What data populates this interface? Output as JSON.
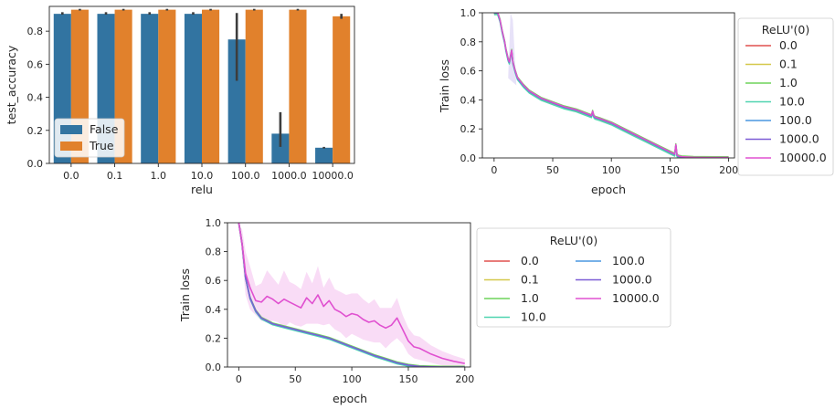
{
  "chart_data": [
    {
      "type": "bar",
      "xlabel": "relu",
      "ylabel": "test_accuracy",
      "ylim": [
        0,
        0.95
      ],
      "yticks": [
        "0.0",
        "0.2",
        "0.4",
        "0.6",
        "0.8"
      ],
      "categories": [
        "0.0",
        "0.1",
        "1.0",
        "10.0",
        "100.0",
        "1000.0",
        "10000.0"
      ],
      "legend_position": "lower-left",
      "series": [
        {
          "name": "False",
          "color": "#3274a1",
          "values": [
            0.905,
            0.905,
            0.905,
            0.905,
            0.75,
            0.18,
            0.095
          ],
          "ci_low": [
            0.9,
            0.9,
            0.9,
            0.9,
            0.5,
            0.1,
            0.09
          ],
          "ci_high": [
            0.915,
            0.915,
            0.915,
            0.915,
            0.91,
            0.31,
            0.1
          ]
        },
        {
          "name": "True",
          "color": "#e1812c",
          "values": [
            0.93,
            0.93,
            0.93,
            0.93,
            0.93,
            0.93,
            0.89
          ],
          "ci_low": [
            0.925,
            0.925,
            0.925,
            0.925,
            0.925,
            0.925,
            0.875
          ],
          "ci_high": [
            0.935,
            0.935,
            0.935,
            0.935,
            0.935,
            0.935,
            0.905
          ]
        }
      ]
    },
    {
      "type": "line",
      "xlabel": "epoch",
      "ylabel": "Train loss",
      "xlim": [
        -10,
        205
      ],
      "ylim": [
        0,
        1.0
      ],
      "xticks": [
        "0",
        "50",
        "100",
        "150",
        "200"
      ],
      "yticks": [
        "0.0",
        "0.2",
        "0.4",
        "0.6",
        "0.8",
        "1.0"
      ],
      "legend_title": "ReLU'(0)",
      "legend_position": "outside-right",
      "series": [
        {
          "name": "0.0",
          "color": "#e0504e"
        },
        {
          "name": "0.1",
          "color": "#d4c84a"
        },
        {
          "name": "1.0",
          "color": "#6ed35a"
        },
        {
          "name": "10.0",
          "color": "#50d4b0"
        },
        {
          "name": "100.0",
          "color": "#4a97e0"
        },
        {
          "name": "1000.0",
          "color": "#7c5cd6"
        },
        {
          "name": "10000.0",
          "color": "#e050d0"
        }
      ],
      "curve_x": [
        0,
        3,
        5,
        7,
        9,
        10,
        12,
        13,
        14,
        15,
        16,
        18,
        20,
        25,
        30,
        40,
        50,
        60,
        70,
        80,
        83,
        84,
        85,
        86,
        90,
        100,
        110,
        120,
        130,
        140,
        150,
        154,
        155,
        156,
        157,
        160,
        170,
        180,
        190,
        200
      ],
      "curve_y": [
        1.0,
        1.0,
        0.95,
        0.87,
        0.8,
        0.75,
        0.68,
        0.66,
        0.7,
        0.74,
        0.66,
        0.6,
        0.55,
        0.5,
        0.46,
        0.41,
        0.38,
        0.35,
        0.33,
        0.3,
        0.29,
        0.32,
        0.29,
        0.28,
        0.27,
        0.24,
        0.2,
        0.16,
        0.12,
        0.08,
        0.04,
        0.025,
        0.09,
        0.02,
        0.012,
        0.006,
        0.002,
        0.001,
        0.0005,
        0.0005
      ]
    },
    {
      "type": "line",
      "xlabel": "epoch",
      "ylabel": "Train loss",
      "xlim": [
        -10,
        205
      ],
      "ylim": [
        0,
        1.0
      ],
      "xticks": [
        "0",
        "50",
        "100",
        "150",
        "200"
      ],
      "yticks": [
        "0.0",
        "0.2",
        "0.4",
        "0.6",
        "0.8",
        "1.0"
      ],
      "legend_title": "ReLU'(0)",
      "legend_position": "outside-right",
      "series": [
        {
          "name": "0.0",
          "color": "#e0504e"
        },
        {
          "name": "0.1",
          "color": "#d4c84a"
        },
        {
          "name": "1.0",
          "color": "#6ed35a"
        },
        {
          "name": "10.0",
          "color": "#50d4b0"
        },
        {
          "name": "100.0",
          "color": "#4a97e0"
        },
        {
          "name": "1000.0",
          "color": "#7c5cd6"
        },
        {
          "name": "10000.0",
          "color": "#e050d0"
        }
      ],
      "base_x": [
        0,
        3,
        6,
        10,
        15,
        20,
        30,
        40,
        50,
        60,
        70,
        80,
        90,
        100,
        110,
        120,
        130,
        140,
        150,
        160,
        170,
        180,
        190,
        200
      ],
      "base_y": [
        1.0,
        0.85,
        0.62,
        0.48,
        0.39,
        0.34,
        0.3,
        0.28,
        0.26,
        0.24,
        0.22,
        0.2,
        0.17,
        0.14,
        0.11,
        0.08,
        0.055,
        0.03,
        0.013,
        0.004,
        0.001,
        0.0003,
        0.0001,
        0.0001
      ],
      "relu10000_x": [
        0,
        3,
        6,
        10,
        15,
        20,
        25,
        30,
        35,
        40,
        45,
        50,
        55,
        60,
        65,
        70,
        75,
        80,
        85,
        90,
        95,
        100,
        105,
        110,
        115,
        120,
        125,
        130,
        135,
        140,
        145,
        150,
        155,
        160,
        170,
        180,
        190,
        200
      ],
      "relu10000_y": [
        1.0,
        0.85,
        0.65,
        0.55,
        0.46,
        0.45,
        0.49,
        0.47,
        0.44,
        0.47,
        0.45,
        0.43,
        0.41,
        0.48,
        0.44,
        0.5,
        0.42,
        0.46,
        0.4,
        0.38,
        0.35,
        0.37,
        0.36,
        0.33,
        0.31,
        0.32,
        0.29,
        0.27,
        0.29,
        0.34,
        0.26,
        0.18,
        0.14,
        0.13,
        0.09,
        0.06,
        0.04,
        0.025
      ],
      "relu10000_band": [
        0.0,
        0.1,
        0.15,
        0.15,
        0.1,
        0.13,
        0.18,
        0.15,
        0.13,
        0.2,
        0.14,
        0.14,
        0.13,
        0.18,
        0.14,
        0.2,
        0.13,
        0.16,
        0.14,
        0.14,
        0.15,
        0.14,
        0.15,
        0.14,
        0.13,
        0.15,
        0.12,
        0.14,
        0.12,
        0.14,
        0.1,
        0.09,
        0.08,
        0.08,
        0.06,
        0.05,
        0.04,
        0.03
      ]
    }
  ]
}
